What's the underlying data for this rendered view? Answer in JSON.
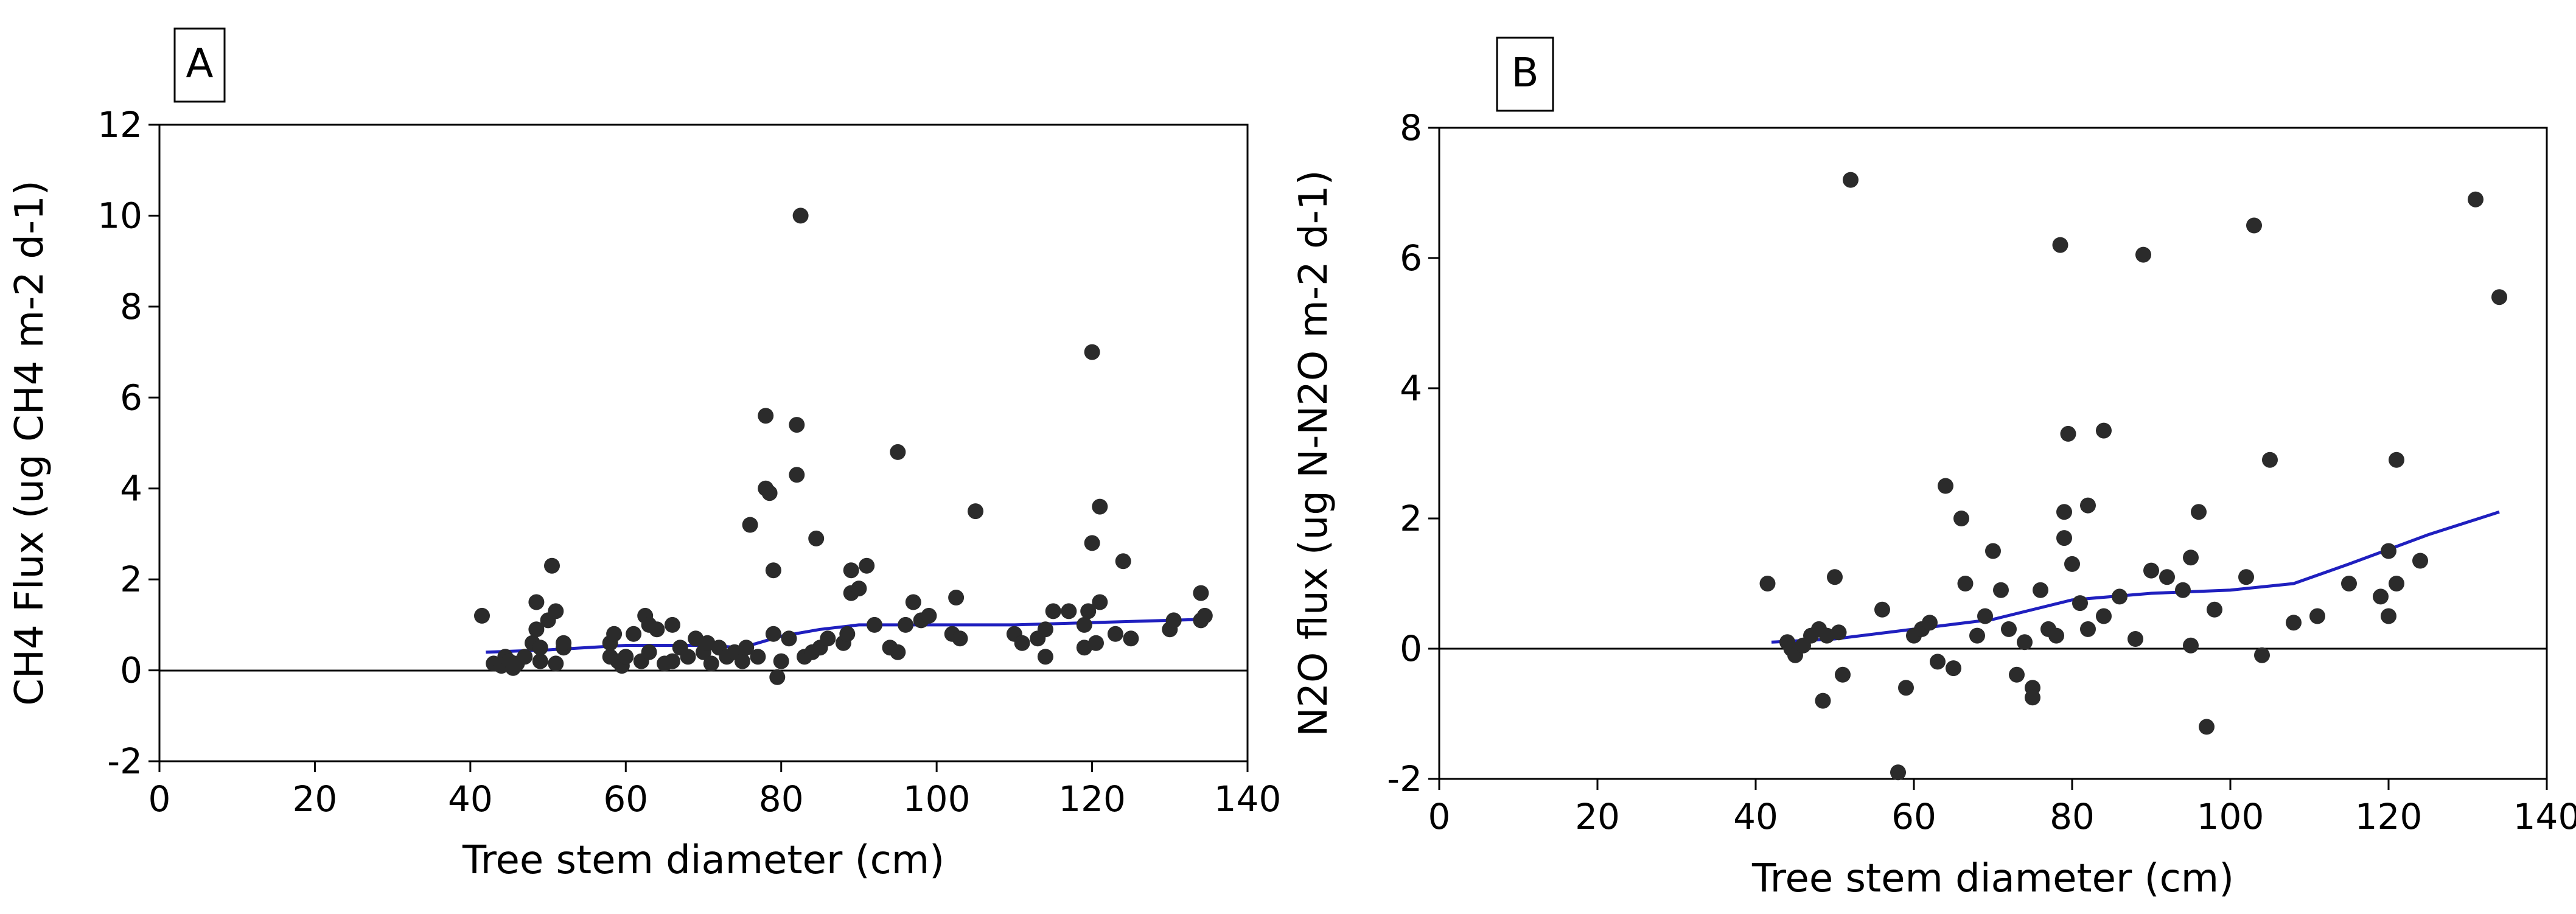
{
  "chart_data": [
    {
      "type": "scatter",
      "panel_label": "A",
      "xlabel": "Tree stem diameter (cm)",
      "ylabel": "CH4 Flux (ug CH4 m-2 d-1)",
      "xlim": [
        0,
        140
      ],
      "ylim": [
        -2,
        12
      ],
      "xticks": [
        0,
        20,
        40,
        60,
        80,
        100,
        120,
        140
      ],
      "yticks": [
        -2,
        0,
        2,
        4,
        6,
        8,
        10,
        12
      ],
      "reference_line_y": 0,
      "points": [
        [
          41.5,
          1.2
        ],
        [
          43,
          0.15
        ],
        [
          44,
          0.1
        ],
        [
          44.5,
          0.3
        ],
        [
          45,
          0.2
        ],
        [
          45.5,
          0.05
        ],
        [
          46,
          0.15
        ],
        [
          47,
          0.3
        ],
        [
          48,
          0.6
        ],
        [
          48.5,
          0.9
        ],
        [
          48.5,
          1.5
        ],
        [
          49,
          0.2
        ],
        [
          49,
          0.5
        ],
        [
          50,
          1.1
        ],
        [
          50.5,
          2.3
        ],
        [
          51,
          1.3
        ],
        [
          51,
          0.15
        ],
        [
          52,
          0.5
        ],
        [
          52,
          0.6
        ],
        [
          58,
          0.3
        ],
        [
          58,
          0.6
        ],
        [
          58.5,
          0.8
        ],
        [
          59,
          0.2
        ],
        [
          59.5,
          0.1
        ],
        [
          60,
          0.3
        ],
        [
          61,
          0.8
        ],
        [
          62,
          0.2
        ],
        [
          62.5,
          1.2
        ],
        [
          63,
          0.4
        ],
        [
          63,
          1.0
        ],
        [
          64,
          0.9
        ],
        [
          65,
          0.15
        ],
        [
          66,
          0.2
        ],
        [
          66,
          1.0
        ],
        [
          67,
          0.5
        ],
        [
          68,
          0.3
        ],
        [
          69,
          0.7
        ],
        [
          70,
          0.4
        ],
        [
          70.5,
          0.6
        ],
        [
          71,
          0.15
        ],
        [
          72,
          0.5
        ],
        [
          73,
          0.3
        ],
        [
          74,
          0.4
        ],
        [
          75,
          0.2
        ],
        [
          75.5,
          0.5
        ],
        [
          76,
          3.2
        ],
        [
          77,
          0.3
        ],
        [
          78,
          4.0
        ],
        [
          78,
          5.6
        ],
        [
          78.5,
          3.9
        ],
        [
          79,
          2.2
        ],
        [
          79,
          0.8
        ],
        [
          79.5,
          -0.15
        ],
        [
          80,
          0.2
        ],
        [
          81,
          0.7
        ],
        [
          82,
          4.3
        ],
        [
          82,
          5.4
        ],
        [
          82.5,
          10.0
        ],
        [
          83,
          0.3
        ],
        [
          84,
          0.4
        ],
        [
          84.5,
          2.9
        ],
        [
          85,
          0.5
        ],
        [
          86,
          0.7
        ],
        [
          88,
          0.6
        ],
        [
          88.5,
          0.8
        ],
        [
          89,
          1.7
        ],
        [
          89,
          2.2
        ],
        [
          90,
          1.8
        ],
        [
          91,
          2.3
        ],
        [
          92,
          1.0
        ],
        [
          94,
          0.5
        ],
        [
          95,
          0.4
        ],
        [
          95,
          4.8
        ],
        [
          96,
          1.0
        ],
        [
          97,
          1.5
        ],
        [
          98,
          1.1
        ],
        [
          99,
          1.2
        ],
        [
          102,
          0.8
        ],
        [
          102.5,
          1.6
        ],
        [
          103,
          0.7
        ],
        [
          105,
          3.5
        ],
        [
          110,
          0.8
        ],
        [
          111,
          0.6
        ],
        [
          113,
          0.7
        ],
        [
          114,
          0.9
        ],
        [
          114,
          0.3
        ],
        [
          115,
          1.3
        ],
        [
          117,
          1.3
        ],
        [
          119,
          0.5
        ],
        [
          119,
          1.0
        ],
        [
          119.5,
          1.3
        ],
        [
          120,
          2.8
        ],
        [
          120,
          7.0
        ],
        [
          120.5,
          0.6
        ],
        [
          121,
          1.5
        ],
        [
          121,
          3.6
        ],
        [
          123,
          0.8
        ],
        [
          124,
          2.4
        ],
        [
          125,
          0.7
        ],
        [
          130,
          0.9
        ],
        [
          130.5,
          1.1
        ],
        [
          134,
          1.1
        ],
        [
          134,
          1.7
        ],
        [
          134.5,
          1.2
        ]
      ],
      "trend": [
        [
          42,
          0.4
        ],
        [
          50,
          0.45
        ],
        [
          60,
          0.55
        ],
        [
          70,
          0.55
        ],
        [
          75,
          0.5
        ],
        [
          80,
          0.75
        ],
        [
          85,
          0.9
        ],
        [
          90,
          1.0
        ],
        [
          100,
          1.0
        ],
        [
          110,
          1.0
        ],
        [
          120,
          1.05
        ],
        [
          130,
          1.1
        ],
        [
          134,
          1.12
        ]
      ]
    },
    {
      "type": "scatter",
      "panel_label": "B",
      "xlabel": "Tree stem diameter (cm)",
      "ylabel": "N2O flux (ug N-N2O m-2 d-1)",
      "xlim": [
        0,
        140
      ],
      "ylim": [
        -2,
        8
      ],
      "xticks": [
        0,
        20,
        40,
        60,
        80,
        100,
        120,
        140
      ],
      "yticks": [
        -2,
        0,
        2,
        4,
        6,
        8
      ],
      "reference_line_y": 0,
      "points": [
        [
          41.5,
          1.0
        ],
        [
          44,
          0.1
        ],
        [
          44.5,
          0.0
        ],
        [
          45,
          -0.1
        ],
        [
          46,
          0.05
        ],
        [
          47,
          0.2
        ],
        [
          48,
          0.3
        ],
        [
          48.5,
          -0.8
        ],
        [
          49,
          0.2
        ],
        [
          50,
          1.1
        ],
        [
          50.5,
          0.25
        ],
        [
          51,
          -0.4
        ],
        [
          52,
          7.2
        ],
        [
          56,
          0.6
        ],
        [
          58,
          -1.9
        ],
        [
          59,
          -0.6
        ],
        [
          60,
          0.2
        ],
        [
          61,
          0.3
        ],
        [
          62,
          0.4
        ],
        [
          63,
          -0.2
        ],
        [
          64,
          2.5
        ],
        [
          65,
          -0.3
        ],
        [
          66,
          2.0
        ],
        [
          66.5,
          1.0
        ],
        [
          68,
          0.2
        ],
        [
          69,
          0.5
        ],
        [
          70,
          1.5
        ],
        [
          71,
          0.9
        ],
        [
          72,
          0.3
        ],
        [
          73,
          -0.4
        ],
        [
          74,
          0.1
        ],
        [
          75,
          -0.6
        ],
        [
          75,
          -0.75
        ],
        [
          76,
          0.9
        ],
        [
          77,
          0.3
        ],
        [
          78,
          0.2
        ],
        [
          78.5,
          6.2
        ],
        [
          79,
          2.1
        ],
        [
          79,
          1.7
        ],
        [
          79.5,
          3.3
        ],
        [
          80,
          1.3
        ],
        [
          81,
          0.7
        ],
        [
          82,
          2.2
        ],
        [
          82,
          0.3
        ],
        [
          84,
          3.35
        ],
        [
          84,
          0.5
        ],
        [
          86,
          0.8
        ],
        [
          88,
          0.15
        ],
        [
          89,
          6.05
        ],
        [
          90,
          1.2
        ],
        [
          92,
          1.1
        ],
        [
          94,
          0.9
        ],
        [
          95,
          0.05
        ],
        [
          95,
          1.4
        ],
        [
          96,
          2.1
        ],
        [
          97,
          -1.2
        ],
        [
          98,
          0.6
        ],
        [
          102,
          1.1
        ],
        [
          103,
          6.5
        ],
        [
          104,
          -0.1
        ],
        [
          105,
          2.9
        ],
        [
          108,
          0.4
        ],
        [
          111,
          0.5
        ],
        [
          115,
          1.0
        ],
        [
          119,
          0.8
        ],
        [
          120,
          1.5
        ],
        [
          120,
          0.5
        ],
        [
          121,
          2.9
        ],
        [
          121,
          1.0
        ],
        [
          124,
          1.35
        ],
        [
          131,
          6.9
        ],
        [
          134,
          5.4
        ]
      ],
      "trend": [
        [
          42,
          0.1
        ],
        [
          50,
          0.15
        ],
        [
          60,
          0.3
        ],
        [
          70,
          0.45
        ],
        [
          80,
          0.75
        ],
        [
          90,
          0.85
        ],
        [
          100,
          0.9
        ],
        [
          108,
          1.0
        ],
        [
          115,
          1.3
        ],
        [
          125,
          1.75
        ],
        [
          134,
          2.1
        ]
      ]
    }
  ]
}
